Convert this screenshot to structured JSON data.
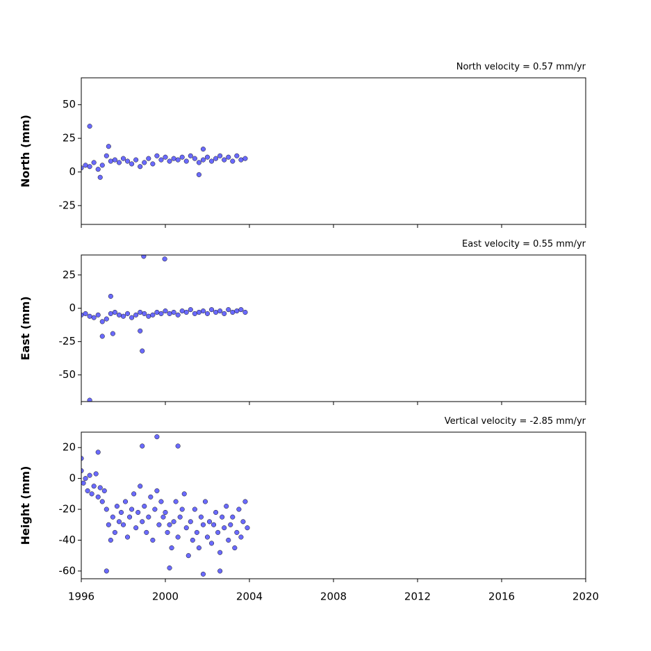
{
  "chart_data": [
    {
      "type": "scatter",
      "title": "North velocity = 0.57 mm/yr",
      "y_label": "North (mm)",
      "color": "#5050ff",
      "x": [
        1996.0,
        1996.2,
        1996.4,
        1996.6,
        1996.8,
        1997.0,
        1997.2,
        1997.4,
        1997.6,
        1997.8,
        1998.0,
        1998.2,
        1998.4,
        1998.6,
        1998.8,
        1999.0,
        1999.2,
        1999.4,
        1999.6,
        1999.8,
        2000.0,
        2000.2,
        2000.4,
        2000.6,
        2000.8,
        2001.0,
        2001.2,
        2001.4,
        2001.6,
        2001.8,
        2002.0,
        2002.2,
        2002.4,
        2002.6,
        2002.8,
        2003.0,
        2003.2,
        2003.4,
        2003.6,
        2003.8,
        1996.4,
        1996.9,
        1997.3,
        2001.8,
        2001.6
      ],
      "values": [
        3,
        5,
        4,
        7,
        2,
        5,
        12,
        8,
        9,
        7,
        10,
        8,
        6,
        9,
        4,
        7,
        10,
        6,
        12,
        9,
        11,
        8,
        10,
        9,
        11,
        8,
        12,
        10,
        7,
        9,
        11,
        8,
        10,
        12,
        9,
        11,
        8,
        12,
        9,
        10,
        34,
        -4,
        19,
        17,
        -2
      ],
      "xlim": [
        1996,
        2020
      ],
      "xticks": [
        1996,
        2000,
        2004,
        2008,
        2012,
        2016,
        2020
      ],
      "ylim": [
        -39,
        70
      ],
      "yticks": [
        -25,
        0,
        25,
        50
      ]
    },
    {
      "type": "scatter",
      "title": "East velocity = 0.55 mm/yr",
      "y_label": "East (mm)",
      "color": "#5050ff",
      "x": [
        1996.0,
        1996.2,
        1996.4,
        1996.6,
        1996.8,
        1997.0,
        1997.2,
        1997.4,
        1997.6,
        1997.8,
        1998.0,
        1998.2,
        1998.4,
        1998.6,
        1998.8,
        1999.0,
        1999.2,
        1999.4,
        1999.6,
        1999.8,
        2000.0,
        2000.2,
        2000.4,
        2000.6,
        2000.8,
        2001.0,
        2001.2,
        2001.4,
        2001.6,
        2001.8,
        2002.0,
        2002.2,
        2002.4,
        2002.6,
        2002.8,
        2003.0,
        2003.2,
        2003.4,
        2003.6,
        2003.8,
        1998.97,
        1999.97,
        1996.4,
        1998.9,
        1998.8,
        1997.4,
        1997.5,
        1997.0
      ],
      "values": [
        -5,
        -4,
        -6,
        -7,
        -5,
        -10,
        -8,
        -4,
        -3,
        -5,
        -6,
        -4,
        -7,
        -5,
        -3,
        -4,
        -6,
        -5,
        -3,
        -4,
        -2,
        -4,
        -3,
        -5,
        -2,
        -3,
        -1,
        -4,
        -3,
        -2,
        -4,
        -1,
        -3,
        -2,
        -4,
        -1,
        -3,
        -2,
        -1,
        -3,
        39,
        37,
        -69,
        -32,
        -17,
        9,
        -19,
        -21
      ],
      "xlim": [
        1996,
        2020
      ],
      "xticks": [
        1996,
        2000,
        2004,
        2008,
        2012,
        2016,
        2020
      ],
      "ylim": [
        -70,
        40
      ],
      "yticks": [
        -50,
        -25,
        0,
        25
      ]
    },
    {
      "type": "scatter",
      "title": "Vertical velocity = -2.85 mm/yr",
      "y_label": "Height (mm)",
      "color": "#5050ff",
      "x": [
        1996.0,
        1996.1,
        1996.2,
        1996.3,
        1996.4,
        1996.5,
        1996.6,
        1996.7,
        1996.8,
        1996.9,
        1997.0,
        1997.1,
        1997.2,
        1997.3,
        1997.4,
        1997.5,
        1997.6,
        1997.7,
        1997.8,
        1997.9,
        1998.0,
        1998.1,
        1998.2,
        1998.3,
        1998.4,
        1998.5,
        1998.6,
        1998.7,
        1998.8,
        1998.9,
        1999.0,
        1999.1,
        1999.2,
        1999.3,
        1999.4,
        1999.5,
        1999.6,
        1999.7,
        1999.8,
        1999.9,
        2000.0,
        2000.1,
        2000.2,
        2000.3,
        2000.4,
        2000.5,
        2000.6,
        2000.7,
        2000.8,
        2000.9,
        2001.0,
        2001.1,
        2001.2,
        2001.3,
        2001.4,
        2001.5,
        2001.6,
        2001.7,
        2001.8,
        2001.9,
        2002.0,
        2002.1,
        2002.2,
        2002.3,
        2002.4,
        2002.5,
        2002.6,
        2002.7,
        2002.8,
        2002.9,
        2003.0,
        2003.1,
        2003.2,
        2003.3,
        2003.4,
        2003.5,
        2003.6,
        2003.7,
        2003.8,
        2003.9,
        1996.0,
        1998.9,
        1999.6,
        2000.6,
        1997.2,
        2001.8,
        2002.6,
        2000.2,
        1996.8
      ],
      "values": [
        5,
        -3,
        0,
        -8,
        2,
        -10,
        -5,
        3,
        -12,
        -6,
        -15,
        -8,
        -20,
        -30,
        -40,
        -25,
        -35,
        -18,
        -28,
        -22,
        -30,
        -15,
        -38,
        -25,
        -20,
        -10,
        -32,
        -22,
        -5,
        -28,
        -18,
        -35,
        -25,
        -12,
        -40,
        -20,
        -8,
        -30,
        -15,
        -25,
        -22,
        -35,
        -30,
        -45,
        -28,
        -15,
        -38,
        -25,
        -20,
        -10,
        -32,
        -50,
        -28,
        -40,
        -20,
        -35,
        -45,
        -25,
        -30,
        -15,
        -38,
        -28,
        -42,
        -30,
        -22,
        -35,
        -48,
        -25,
        -32,
        -18,
        -40,
        -30,
        -25,
        -45,
        -35,
        -20,
        -38,
        -28,
        -15,
        -32,
        13,
        21,
        27,
        21,
        -60,
        -62,
        -60,
        -58,
        17
      ],
      "xlim": [
        1996,
        2020
      ],
      "xticks": [
        1996,
        2000,
        2004,
        2008,
        2012,
        2016,
        2020
      ],
      "ylim": [
        -65,
        30
      ],
      "yticks": [
        -60,
        -40,
        -20,
        0,
        20
      ]
    }
  ]
}
